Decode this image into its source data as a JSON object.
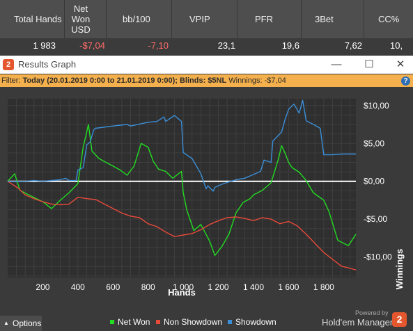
{
  "stats": {
    "headers": [
      "Total Hands",
      "Net Won USD",
      "bb/100",
      "VPIP",
      "PFR",
      "3Bet",
      "CC%"
    ],
    "row": {
      "total_hands": "1 983",
      "net_won": "-$7,04",
      "bb100": "-7,10",
      "vpip": "23,1",
      "pfr": "19,6",
      "threebet": "7,62",
      "cc": "10,"
    }
  },
  "window": {
    "logo_text": "2",
    "title": "Results Graph",
    "minimize": "—",
    "maximize": "☐",
    "close": "✕"
  },
  "filter": {
    "prefix": "Filter: ",
    "bold": "Today (20.01.2019 0:00 to 21.01.2019 0:00); Blinds: $5NL",
    "suffix": " Winnings: -$7,04",
    "help": "?"
  },
  "chart_data": {
    "type": "line",
    "xlabel": "Hands",
    "ylabel": "Winnings",
    "xlim": [
      0,
      1983
    ],
    "ylim": [
      -12.7,
      10.9
    ],
    "x_ticks": [
      200,
      400,
      600,
      800,
      1000,
      1200,
      1400,
      1600,
      1800
    ],
    "x_tick_labels": [
      "200",
      "400",
      "600",
      "800",
      "1 000",
      "1 200",
      "1 400",
      "1 600",
      "1 800"
    ],
    "y_ticks": [
      10,
      5,
      0,
      -5,
      -10
    ],
    "y_tick_labels": [
      "$10,00",
      "$5,00",
      "$0,00",
      "-$5,00",
      "-$10,00"
    ],
    "grid": true,
    "legend_position": "bottom",
    "series": [
      {
        "name": "Net Won",
        "color": "#22dd22",
        "x": [
          0,
          40,
          70,
          120,
          200,
          250,
          300,
          350,
          400,
          430,
          460,
          480,
          520,
          560,
          600,
          640,
          680,
          720,
          760,
          800,
          830,
          860,
          900,
          940,
          990,
          1000,
          1020,
          1060,
          1100,
          1150,
          1180,
          1220,
          1260,
          1300,
          1340,
          1380,
          1400,
          1450,
          1500,
          1540,
          1560,
          1580,
          1600,
          1620,
          1660,
          1700,
          1740,
          1800,
          1830,
          1880,
          1940,
          1983
        ],
        "y": [
          0,
          1.0,
          -1.2,
          -1.8,
          -2.7,
          -3.6,
          -2.5,
          -1.5,
          -0.3,
          4.5,
          7.5,
          4.0,
          3.0,
          2.5,
          2.0,
          1.5,
          0.8,
          2.0,
          5.0,
          4.5,
          2.6,
          1.6,
          1.3,
          0.4,
          1.3,
          -1.5,
          -3.8,
          -6.5,
          -5.7,
          -7.9,
          -9.8,
          -8.6,
          -7.0,
          -4.2,
          -2.8,
          -2.3,
          -1.8,
          -1.2,
          -0.2,
          2.8,
          4.7,
          3.7,
          2.5,
          1.8,
          1.2,
          0.1,
          -1.5,
          -2.5,
          -4.0,
          -7.8,
          -8.5,
          -7.0
        ]
      },
      {
        "name": "Non Showdown",
        "color": "#e84a3a",
        "x": [
          0,
          60,
          100,
          150,
          200,
          250,
          300,
          350,
          400,
          450,
          500,
          550,
          600,
          650,
          700,
          750,
          800,
          850,
          900,
          950,
          1000,
          1050,
          1100,
          1150,
          1200,
          1250,
          1300,
          1350,
          1400,
          1450,
          1500,
          1550,
          1600,
          1650,
          1700,
          1750,
          1800,
          1850,
          1900,
          1983
        ],
        "y": [
          0,
          -0.9,
          -1.8,
          -2.3,
          -2.7,
          -3.0,
          -3.1,
          -3.0,
          -2.1,
          -2.3,
          -2.4,
          -3.0,
          -3.6,
          -4.2,
          -4.6,
          -4.8,
          -5.6,
          -6.0,
          -6.7,
          -7.3,
          -7.1,
          -6.9,
          -6.4,
          -5.7,
          -5.2,
          -4.8,
          -4.7,
          -4.9,
          -5.2,
          -4.8,
          -5.0,
          -5.6,
          -5.3,
          -5.9,
          -7.0,
          -8.2,
          -9.4,
          -10.3,
          -11.2,
          -11.7
        ]
      },
      {
        "name": "Showdown",
        "color": "#3a8fd9",
        "x": [
          0,
          100,
          150,
          200,
          250,
          300,
          330,
          350,
          390,
          400,
          430,
          450,
          470,
          490,
          500,
          600,
          680,
          700,
          800,
          850,
          890,
          900,
          950,
          990,
          1000,
          1050,
          1100,
          1130,
          1140,
          1170,
          1180,
          1230,
          1300,
          1350,
          1400,
          1440,
          1460,
          1500,
          1510,
          1560,
          1580,
          1600,
          1630,
          1660,
          1680,
          1700,
          1750,
          1780,
          1800,
          1850,
          1900,
          1983
        ],
        "y": [
          0,
          0.0,
          0.1,
          0.0,
          0.1,
          0.2,
          0.4,
          0.1,
          0.1,
          1.5,
          1.8,
          4.8,
          5.2,
          6.8,
          7.0,
          7.3,
          7.5,
          7.3,
          7.8,
          7.9,
          8.5,
          7.9,
          8.7,
          7.9,
          3.8,
          3.0,
          1.0,
          -1.0,
          -0.6,
          -1.3,
          -0.8,
          -0.3,
          0.2,
          0.4,
          0.9,
          1.3,
          2.8,
          2.5,
          5.3,
          6.5,
          8.2,
          9.5,
          10.2,
          9.0,
          10.7,
          8.0,
          7.4,
          7.0,
          3.5,
          3.5,
          3.6,
          3.6
        ]
      }
    ]
  },
  "legend": {
    "net_won": "Net Won",
    "non_showdown": "Non Showdown",
    "showdown": "Showdown"
  },
  "footer": {
    "options": "Options",
    "options_arrow": "▲",
    "powered_by": "Powered by",
    "brand": "Hold'em Manager",
    "brand_logo": "2"
  }
}
